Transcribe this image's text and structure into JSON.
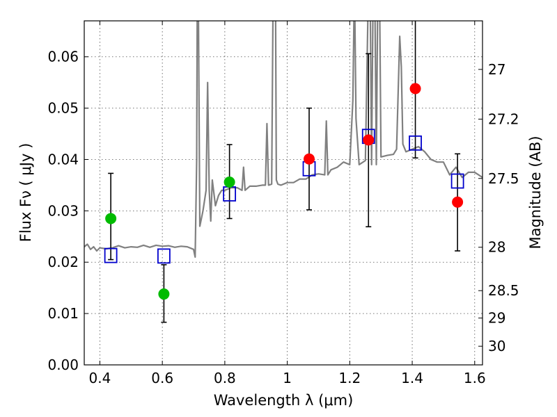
{
  "chart_data": {
    "type": "scatter",
    "title": "",
    "xlabel": "Wavelength  λ (μm)",
    "ylabel": "Flux  Fν  ( μJy )",
    "ylabel_right": "Magnitude (AB)",
    "xlim": [
      0.35,
      1.625
    ],
    "ylim": [
      0.0,
      0.067
    ],
    "x_ticks": [
      0.4,
      0.6,
      0.8,
      1.0,
      1.2,
      1.4,
      1.6
    ],
    "x_tick_labels": [
      "0.4",
      "0.6",
      "0.8",
      "1",
      "1.2",
      "1.4",
      "1.6"
    ],
    "y_ticks": [
      0.0,
      0.01,
      0.02,
      0.03,
      0.04,
      0.05,
      0.06
    ],
    "y_tick_labels": [
      "0.00",
      "0.01",
      "0.02",
      "0.03",
      "0.04",
      "0.05",
      "0.06"
    ],
    "right_ticks": [
      {
        "label": "27",
        "mag": 27.0
      },
      {
        "label": "27.2",
        "mag": 27.2
      },
      {
        "label": "27.5",
        "mag": 27.5
      },
      {
        "label": "28",
        "mag": 28.0
      },
      {
        "label": "28.5",
        "mag": 28.5
      },
      {
        "label": "29",
        "mag": 29.0
      },
      {
        "label": "30",
        "mag": 30.0
      }
    ],
    "grid": true,
    "series": [
      {
        "kind": "line",
        "color": "#808080",
        "x": [
          0.35,
          0.36,
          0.37,
          0.38,
          0.39,
          0.4,
          0.42,
          0.44,
          0.46,
          0.48,
          0.5,
          0.52,
          0.54,
          0.56,
          0.58,
          0.6,
          0.62,
          0.64,
          0.66,
          0.68,
          0.7,
          0.705,
          0.71,
          0.712,
          0.715,
          0.72,
          0.73,
          0.74,
          0.745,
          0.75,
          0.755,
          0.76,
          0.77,
          0.78,
          0.79,
          0.8,
          0.82,
          0.84,
          0.855,
          0.86,
          0.865,
          0.88,
          0.9,
          0.92,
          0.93,
          0.935,
          0.94,
          0.95,
          0.955,
          0.958,
          0.962,
          0.965,
          0.97,
          0.98,
          1.0,
          1.02,
          1.04,
          1.06,
          1.08,
          1.1,
          1.12,
          1.125,
          1.13,
          1.14,
          1.16,
          1.18,
          1.2,
          1.21,
          1.215,
          1.22,
          1.23,
          1.25,
          1.26,
          1.265,
          1.27,
          1.275,
          1.28,
          1.285,
          1.29,
          1.295,
          1.3,
          1.32,
          1.34,
          1.35,
          1.36,
          1.365,
          1.37,
          1.38,
          1.4,
          1.42,
          1.44,
          1.46,
          1.48,
          1.5,
          1.52,
          1.54,
          1.56,
          1.58,
          1.6,
          1.625
        ],
        "y": [
          0.023,
          0.0235,
          0.0225,
          0.023,
          0.0222,
          0.0228,
          0.0226,
          0.0228,
          0.0232,
          0.0228,
          0.023,
          0.0229,
          0.0233,
          0.0229,
          0.0233,
          0.0231,
          0.0232,
          0.0229,
          0.0231,
          0.023,
          0.0225,
          0.021,
          0.04,
          0.075,
          0.075,
          0.027,
          0.03,
          0.034,
          0.055,
          0.034,
          0.028,
          0.036,
          0.031,
          0.033,
          0.034,
          0.034,
          0.0345,
          0.0345,
          0.034,
          0.0385,
          0.034,
          0.0348,
          0.0348,
          0.035,
          0.035,
          0.047,
          0.035,
          0.0352,
          0.075,
          0.075,
          0.075,
          0.036,
          0.0352,
          0.035,
          0.0355,
          0.0355,
          0.0362,
          0.0362,
          0.037,
          0.0372,
          0.037,
          0.0475,
          0.037,
          0.038,
          0.0385,
          0.0395,
          0.039,
          0.0515,
          0.075,
          0.048,
          0.039,
          0.0398,
          0.075,
          0.075,
          0.039,
          0.075,
          0.075,
          0.039,
          0.075,
          0.075,
          0.0405,
          0.0408,
          0.041,
          0.042,
          0.064,
          0.058,
          0.043,
          0.0415,
          0.042,
          0.0425,
          0.0415,
          0.04,
          0.0395,
          0.0395,
          0.037,
          0.0385,
          0.0365,
          0.0375,
          0.0375,
          0.0365
        ]
      },
      {
        "kind": "marker-square",
        "color": "#0000cc",
        "x": [
          0.435,
          0.605,
          0.815,
          1.07,
          1.26,
          1.41,
          1.545
        ],
        "y": [
          0.0213,
          0.0212,
          0.0333,
          0.0382,
          0.0445,
          0.0432,
          0.0358
        ]
      },
      {
        "kind": "marker-circle",
        "color": "#00bb00",
        "x": [
          0.435,
          0.605,
          0.815
        ],
        "y": [
          0.0285,
          0.0138,
          0.0356
        ]
      },
      {
        "kind": "marker-circle",
        "color": "#ff0000",
        "x": [
          1.07,
          1.26,
          1.41,
          1.545
        ],
        "y": [
          0.0401,
          0.0438,
          0.0538,
          0.0317
        ]
      },
      {
        "kind": "errorbar",
        "color": "#000000",
        "x": [
          0.435,
          0.605,
          0.815,
          1.07,
          1.26,
          1.41,
          1.545
        ],
        "ylow": [
          0.0205,
          0.0083,
          0.0285,
          0.0302,
          0.0269,
          0.0403,
          0.0222
        ],
        "yhigh": [
          0.0373,
          0.0195,
          0.0429,
          0.05,
          0.0606,
          0.068,
          0.0411
        ]
      }
    ]
  }
}
